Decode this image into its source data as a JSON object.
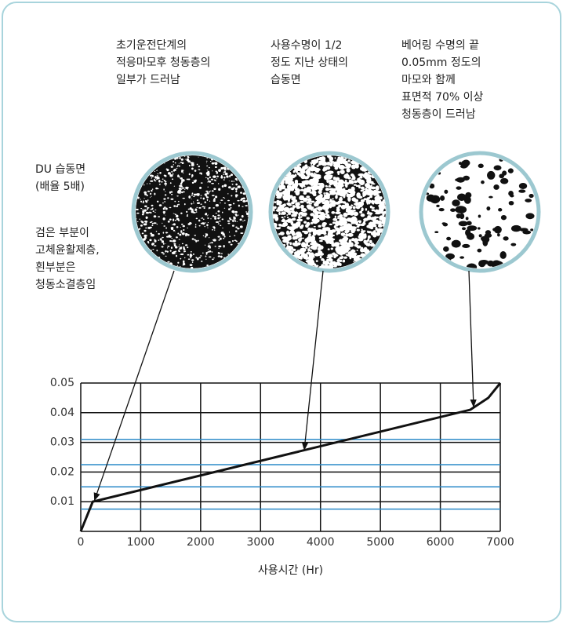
{
  "chart_data": {
    "type": "line",
    "captions": [
      [
        "초기운전단계의",
        "적응마모후 청동층의",
        "일부가 드러남"
      ],
      [
        "사용수명이 1/2",
        "정도 지난 상태의",
        "습동면"
      ],
      [
        "베어링 수명의 끝",
        "0.05mm 정도의",
        "마모와 함께",
        "표면적 70% 이상",
        "청동층이 드러남"
      ]
    ],
    "side_notes": [
      [
        "DU 습동면",
        "(배율 5배)"
      ],
      [
        "검은 부분이",
        "고체윤활제층,",
        "흰부분은",
        "청동소결층임"
      ]
    ],
    "xlabel": "사용시간 (Hr)",
    "x": [
      0,
      200,
      6500,
      6800,
      7000
    ],
    "values": [
      0,
      0.01,
      0.041,
      0.045,
      0.05
    ],
    "color": "#111111",
    "xlim": [
      0,
      7000
    ],
    "ylim": [
      0,
      0.05
    ],
    "xticks": [
      0,
      1000,
      2000,
      3000,
      4000,
      5000,
      6000,
      7000
    ],
    "yticks": [
      0.01,
      0.02,
      0.03,
      0.04,
      0.05
    ],
    "grid": true,
    "reference_lines": [
      0.0075,
      0.015,
      0.0225,
      0.031
    ],
    "reference_color": "#2a8ac8",
    "pointers": [
      {
        "x": 230,
        "y": 0.0105
      },
      {
        "x": 3730,
        "y": 0.0275
      },
      {
        "x": 6555,
        "y": 0.042
      }
    ]
  }
}
